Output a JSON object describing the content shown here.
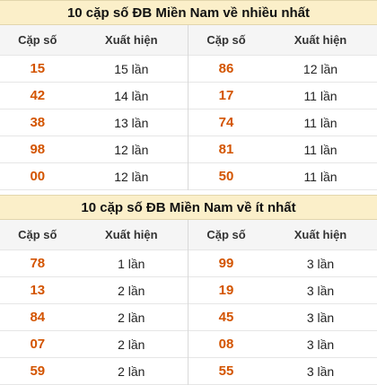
{
  "top": {
    "title": "10 cặp số ĐB Miền Nam về nhiều nhất",
    "headers": {
      "pair": "Cặp số",
      "count": "Xuất hiện"
    },
    "left": [
      {
        "num": "15",
        "count": "15 lần"
      },
      {
        "num": "42",
        "count": "14 lần"
      },
      {
        "num": "38",
        "count": "13 lần"
      },
      {
        "num": "98",
        "count": "12 lần"
      },
      {
        "num": "00",
        "count": "12 lần"
      }
    ],
    "right": [
      {
        "num": "86",
        "count": "12 lần"
      },
      {
        "num": "17",
        "count": "11 lần"
      },
      {
        "num": "74",
        "count": "11 lần"
      },
      {
        "num": "81",
        "count": "11 lần"
      },
      {
        "num": "50",
        "count": "11 lần"
      }
    ]
  },
  "bottom": {
    "title": "10 cặp số ĐB Miền Nam về ít nhất",
    "headers": {
      "pair": "Cặp số",
      "count": "Xuất hiện"
    },
    "left": [
      {
        "num": "78",
        "count": "1 lần"
      },
      {
        "num": "13",
        "count": "2 lần"
      },
      {
        "num": "84",
        "count": "2 lần"
      },
      {
        "num": "07",
        "count": "2 lần"
      },
      {
        "num": "59",
        "count": "2 lần"
      }
    ],
    "right": [
      {
        "num": "99",
        "count": "3 lần"
      },
      {
        "num": "19",
        "count": "3 lần"
      },
      {
        "num": "45",
        "count": "3 lần"
      },
      {
        "num": "08",
        "count": "3 lần"
      },
      {
        "num": "55",
        "count": "3 lần"
      }
    ]
  },
  "colors": {
    "title_bg": "#fbefc9",
    "number": "#d35400",
    "header_bg": "#f5f5f5"
  }
}
